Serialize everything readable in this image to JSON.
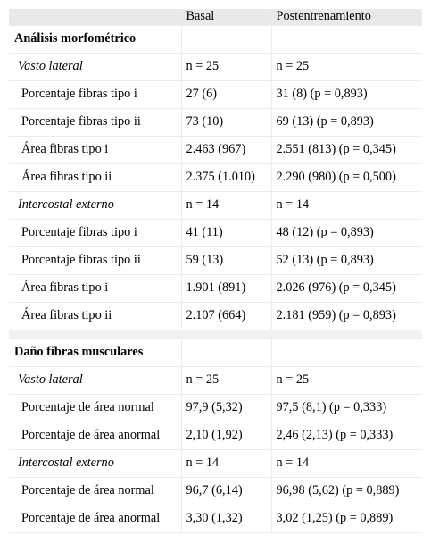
{
  "columns": [
    "",
    "Basal",
    "Postentrenamiento"
  ],
  "rows": [
    {
      "type": "section",
      "cells": [
        "Análisis morfométrico",
        "",
        ""
      ]
    },
    {
      "type": "sub",
      "cells": [
        "Vasto lateral",
        "n = 25",
        "n = 25"
      ]
    },
    {
      "type": "item",
      "cells": [
        "Porcentaje fibras tipo i",
        "27 (6)",
        "31 (8) (p = 0,893)"
      ]
    },
    {
      "type": "item",
      "cells": [
        "Porcentaje fibras tipo ii",
        "73 (10)",
        "69 (13) (p = 0,893)"
      ]
    },
    {
      "type": "item",
      "cells": [
        "Área fibras tipo i",
        "2.463 (967)",
        "2.551 (813) (p = 0,345)"
      ]
    },
    {
      "type": "item",
      "cells": [
        "Área fibras tipo ii",
        "2.375 (1.010)",
        "2.290 (980) (p = 0,500)"
      ]
    },
    {
      "type": "sub",
      "cells": [
        "Intercostal externo",
        "n = 14",
        "n = 14"
      ]
    },
    {
      "type": "item",
      "cells": [
        "Porcentaje fibras tipo i",
        "41 (11)",
        "48 (12) (p = 0,893)"
      ]
    },
    {
      "type": "item",
      "cells": [
        "Porcentaje fibras tipo ii",
        "59 (13)",
        "52 (13) (p = 0,893)"
      ]
    },
    {
      "type": "item",
      "cells": [
        "Área fibras tipo i",
        "1.901 (891)",
        "2.026 (976) (p = 0,345)"
      ]
    },
    {
      "type": "item",
      "cells": [
        "Área fibras tipo ii",
        "2.107 (664)",
        "2.181 (959) (p = 0,893)"
      ]
    },
    {
      "type": "spacer",
      "cells": [
        "",
        "",
        ""
      ]
    },
    {
      "type": "section",
      "cells": [
        "Daño fibras musculares",
        "",
        ""
      ]
    },
    {
      "type": "sub",
      "cells": [
        "Vasto lateral",
        "n = 25",
        "n = 25"
      ]
    },
    {
      "type": "item",
      "cells": [
        "Porcentaje de área normal",
        "97,9 (5,32)",
        "97,5 (8,1) (p = 0,333)"
      ]
    },
    {
      "type": "item",
      "cells": [
        "Porcentaje de área anormal",
        "2,10 (1,92)",
        "2,46 (2,13) (p = 0,333)"
      ]
    },
    {
      "type": "sub",
      "cells": [
        "Intercostal externo",
        "n = 14",
        "n = 14"
      ]
    },
    {
      "type": "item",
      "cells": [
        "Porcentaje de área normal",
        "96,7 (6,14)",
        "96,98 (5,62) (p = 0,889)"
      ]
    },
    {
      "type": "item",
      "cells": [
        "Porcentaje de área anormal",
        "3,30 (1,32)",
        "3,02 (1,25) (p = 0,889)"
      ]
    }
  ]
}
